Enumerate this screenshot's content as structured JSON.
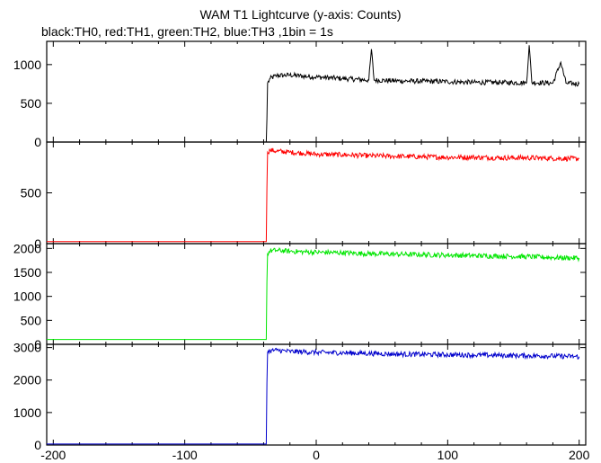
{
  "chart_data": {
    "type": "line",
    "title": "WAM T1 Lightcurve (y-axis: Counts)",
    "subtitle": "black:TH0, red:TH1, green:TH2, blue:TH3 ,1bin = 1s",
    "xlabel": "",
    "ylabel": "",
    "x_range": [
      -205,
      205
    ],
    "x_ticks": [
      -200,
      -100,
      0,
      100,
      200
    ],
    "panels": [
      {
        "name": "TH0",
        "color": "#000000",
        "ylim": [
          0,
          1300
        ],
        "yticks": [
          0,
          500,
          1000
        ],
        "data_x": [
          -205,
          -38,
          -37.5,
          -37,
          -35,
          -30,
          -25,
          -20,
          -10,
          0,
          20,
          40,
          42,
          44,
          60,
          80,
          100,
          120,
          140,
          160,
          162,
          164,
          180,
          186,
          190,
          200
        ],
        "data_y": [
          0,
          0,
          300,
          760,
          820,
          860,
          860,
          865,
          850,
          840,
          820,
          800,
          1200,
          800,
          790,
          785,
          780,
          770,
          770,
          765,
          1250,
          770,
          760,
          1030,
          760,
          750
        ]
      },
      {
        "name": "TH1",
        "color": "#ff0000",
        "ylim": [
          0,
          1000
        ],
        "yticks": [
          0,
          500
        ],
        "data_x": [
          -205,
          -38,
          -37.5,
          -37,
          -35,
          -30,
          -20,
          -10,
          0,
          20,
          40,
          60,
          80,
          100,
          120,
          140,
          160,
          180,
          200
        ],
        "data_y": [
          20,
          20,
          550,
          900,
          920,
          910,
          900,
          890,
          880,
          875,
          865,
          860,
          855,
          850,
          850,
          845,
          845,
          840,
          835
        ]
      },
      {
        "name": "TH2",
        "color": "#00e600",
        "ylim": [
          0,
          2100
        ],
        "yticks": [
          0,
          500,
          1000,
          1500,
          2000
        ],
        "data_x": [
          -205,
          -38,
          -37.5,
          -37,
          -35,
          -30,
          -20,
          -10,
          0,
          20,
          40,
          60,
          80,
          100,
          120,
          140,
          160,
          180,
          200
        ],
        "data_y": [
          100,
          100,
          1300,
          1900,
          1950,
          1960,
          1940,
          1930,
          1920,
          1910,
          1890,
          1880,
          1870,
          1860,
          1850,
          1840,
          1830,
          1810,
          1800
        ]
      },
      {
        "name": "TH3",
        "color": "#0000cc",
        "ylim": [
          0,
          3100
        ],
        "yticks": [
          0,
          1000,
          2000,
          3000
        ],
        "data_x": [
          -205,
          -38,
          -37.5,
          -37,
          -35,
          -30,
          -20,
          -10,
          0,
          20,
          40,
          60,
          80,
          100,
          120,
          140,
          160,
          180,
          200
        ],
        "data_y": [
          30,
          30,
          1900,
          2850,
          2900,
          2920,
          2880,
          2870,
          2850,
          2840,
          2820,
          2800,
          2790,
          2780,
          2770,
          2760,
          2750,
          2740,
          2720
        ]
      }
    ]
  }
}
